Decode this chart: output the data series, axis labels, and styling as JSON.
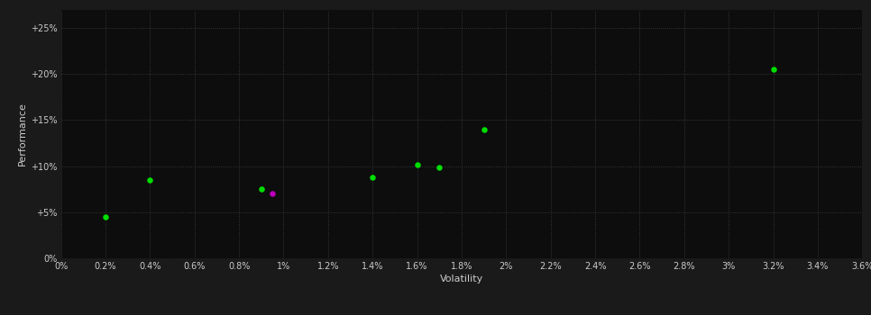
{
  "background_color": "#1a1a1a",
  "plot_bg_color": "#0d0d0d",
  "grid_color": "#404040",
  "text_color": "#cccccc",
  "xlabel": "Volatility",
  "ylabel": "Performance",
  "xlim": [
    0,
    0.036
  ],
  "ylim": [
    0,
    0.27
  ],
  "xtick_step": 0.002,
  "ytick_step": 0.05,
  "points_green": [
    [
      0.002,
      0.045
    ],
    [
      0.004,
      0.085
    ],
    [
      0.009,
      0.075
    ],
    [
      0.014,
      0.088
    ],
    [
      0.016,
      0.102
    ],
    [
      0.017,
      0.099
    ],
    [
      0.019,
      0.14
    ],
    [
      0.032,
      0.205
    ]
  ],
  "points_magenta": [
    [
      0.0095,
      0.07
    ]
  ],
  "point_color_green": "#00dd00",
  "point_color_magenta": "#bb00bb",
  "marker_size": 22
}
